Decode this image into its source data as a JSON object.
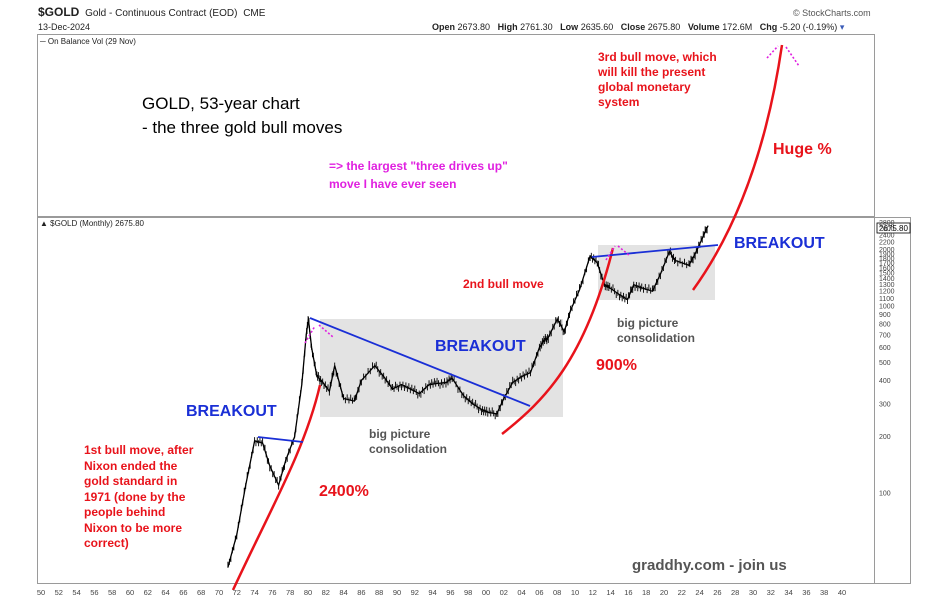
{
  "header": {
    "symbol": "$GOLD",
    "description": "Gold - Continuous Contract (EOD)",
    "exchange": "CME",
    "date": "13-Dec-2024",
    "source": "© StockCharts.com",
    "open_label": "Open",
    "open": "2673.80",
    "high_label": "High",
    "high": "2761.30",
    "low_label": "Low",
    "low": "2635.60",
    "close_label": "Close",
    "close": "2675.80",
    "volume_label": "Volume",
    "volume": "172.6M",
    "chg_label": "Chg",
    "chg": "-5.20 (-0.19%)"
  },
  "top_panel": {
    "legend": "On Balance Vol (29 Nov)"
  },
  "main_panel": {
    "legend": "$GOLD (Monthly) 2675.80",
    "last_value_badge": "2675.80"
  },
  "annotations": {
    "title_line1": "GOLD, 53-year chart",
    "title_line2": "- the three gold bull moves",
    "pink_line1": "=> the largest \"three drives up\"",
    "pink_line2": "move I have ever seen",
    "third_move": [
      "3rd bull move, which",
      "will kill the present",
      "global monetary",
      "system"
    ],
    "huge": "Huge %",
    "breakout_left": "BREAKOUT",
    "breakout_mid": "BREAKOUT",
    "breakout_right": "BREAKOUT",
    "second_move": "2nd bull move",
    "pct_900": "900%",
    "pct_2400": "2400%",
    "consolidation_1": [
      "big picture",
      "consolidation"
    ],
    "consolidation_2": [
      "big picture",
      "consolidation"
    ],
    "first_move": [
      "1st bull move, after",
      "Nixon ended the",
      "gold standard in",
      "1971 (done by the",
      "people behind",
      "Nixon to be more",
      "correct)"
    ],
    "watermark": "graddhy.com - join us"
  },
  "colors": {
    "price": "#000000",
    "annotation_red": "#e8131b",
    "breakout_blue": "#1a2fd6",
    "pink": "#e020e0",
    "consolidation_box": "#e3e3e3"
  },
  "chart_data": {
    "type": "line",
    "title": "",
    "xlabel": "",
    "ylabel": "",
    "scale": "log",
    "ylim": [
      60,
      3100
    ],
    "y_ticks": [
      100,
      200,
      300,
      400,
      500,
      600,
      700,
      800,
      900,
      1000,
      1100,
      1200,
      1300,
      1400,
      1500,
      1600,
      1700,
      1800,
      1900,
      2000,
      2200,
      2400,
      2600,
      2800
    ],
    "y_tick_labels": [
      "100",
      "200",
      "300",
      "400",
      "500",
      "600",
      "700",
      "800",
      "900",
      "1000",
      "1100",
      "1200",
      "1300",
      "1400",
      "1500",
      "1600",
      "1700",
      "1800",
      "1900",
      "2000",
      "2200",
      "2400",
      "2600",
      "2800"
    ],
    "x_tick_labels": [
      "50",
      "52",
      "54",
      "56",
      "58",
      "60",
      "62",
      "64",
      "66",
      "68",
      "70",
      "72",
      "74",
      "76",
      "78",
      "80",
      "82",
      "84",
      "86",
      "88",
      "90",
      "92",
      "94",
      "96",
      "98",
      "00",
      "02",
      "04",
      "06",
      "08",
      "10",
      "12",
      "14",
      "16",
      "18",
      "20",
      "22",
      "24",
      "26",
      "28",
      "30",
      "32",
      "34",
      "36",
      "38",
      "40"
    ],
    "series": [
      {
        "values_note": "",
        "x": [
          1971,
          1972,
          1973,
          1974,
          1974.9,
          1975.7,
          1976.7,
          1977.5,
          1978.5,
          1979.3,
          1979.8,
          1980.05,
          1980.4,
          1981,
          1981.5,
          1982.4,
          1983,
          1984,
          1985.2,
          1986,
          1987.5,
          1988.5,
          1989.5,
          1990.5,
          1991.5,
          1992.5,
          1993.6,
          1994.5,
          1995.5,
          1996.2,
          1997.5,
          1998.5,
          1999.5,
          2000.2,
          2001.2,
          2002,
          2003,
          2004,
          2005,
          2006,
          2006.5,
          2007,
          2008,
          2008.8,
          2009.5,
          2010.5,
          2011.7,
          2012.5,
          2013.3,
          2013.9,
          2015,
          2015.9,
          2016.6,
          2017.5,
          2018.7,
          2019.6,
          2020.6,
          2021.3,
          2022.8,
          2023.5,
          2024.3,
          2024.95
        ],
        "y": [
          40,
          60,
          110,
          190,
          185,
          140,
          110,
          150,
          200,
          380,
          700,
          850,
          600,
          420,
          400,
          350,
          480,
          320,
          310,
          400,
          480,
          420,
          360,
          380,
          360,
          340,
          380,
          385,
          390,
          410,
          330,
          300,
          280,
          270,
          265,
          320,
          390,
          420,
          440,
          600,
          650,
          680,
          850,
          730,
          950,
          1220,
          1850,
          1700,
          1300,
          1250,
          1150,
          1080,
          1300,
          1250,
          1200,
          1480,
          1950,
          1750,
          1650,
          1900,
          2300,
          2690
        ]
      }
    ]
  }
}
